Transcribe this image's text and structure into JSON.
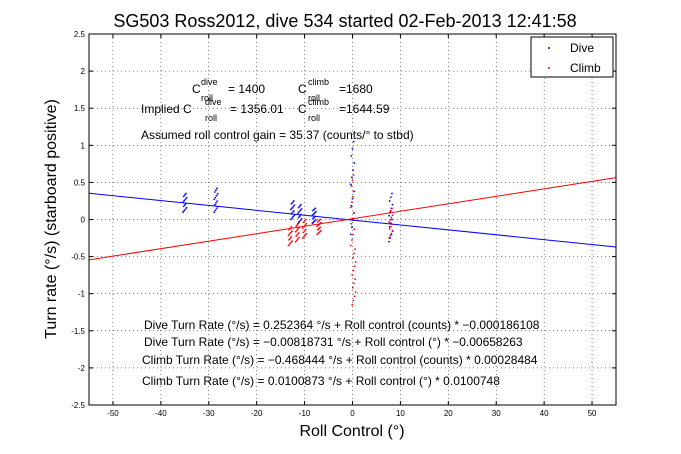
{
  "chart_data": {
    "type": "scatter",
    "title": "SG503 Ross2012, dive 534 started 02-Feb-2013 12:41:58",
    "xlabel": "Roll Control (°)",
    "ylabel": "Turn rate (°/s) (starboard positive)",
    "xlim": [
      -55,
      55
    ],
    "ylim": [
      -2.5,
      2.5
    ],
    "xticks": [
      -50,
      -40,
      -30,
      -20,
      -10,
      0,
      10,
      20,
      30,
      40,
      50
    ],
    "yticks": [
      -2.5,
      -2,
      -1.5,
      -1,
      -0.5,
      0,
      0.5,
      1,
      1.5,
      2,
      2.5
    ],
    "grid": true,
    "legend_position": "top-right",
    "series": [
      {
        "name": "Dive",
        "color": "#0000ff",
        "marker": "dot",
        "fit": {
          "intercept": -0.00818731,
          "slope": -0.00658263
        },
        "clusters": [
          {
            "x": -35,
            "y_min": 0.1,
            "y_max": 0.35
          },
          {
            "x": -28.5,
            "y_min": 0.1,
            "y_max": 0.42
          },
          {
            "x": -12.5,
            "y_min": 0.0,
            "y_max": 0.25
          },
          {
            "x": -11,
            "y_min": -0.05,
            "y_max": 0.2
          },
          {
            "x": -8,
            "y_min": -0.05,
            "y_max": 0.15
          },
          {
            "x": 0,
            "y_min": -0.2,
            "y_max": 1.05
          },
          {
            "x": 8,
            "y_min": -0.3,
            "y_max": 0.35
          }
        ]
      },
      {
        "name": "Climb",
        "color": "#ff0000",
        "marker": "dot",
        "fit": {
          "intercept": 0.0100873,
          "slope": 0.0100748
        },
        "clusters": [
          {
            "x": -13,
            "y_min": -0.35,
            "y_max": -0.1
          },
          {
            "x": -11.5,
            "y_min": -0.3,
            "y_max": -0.05
          },
          {
            "x": -10,
            "y_min": -0.25,
            "y_max": 0.0
          },
          {
            "x": -7,
            "y_min": -0.2,
            "y_max": 0.0
          },
          {
            "x": 0,
            "y_min": -0.35,
            "y_max": 0.6
          },
          {
            "x": 0.3,
            "y_min": -1.15,
            "y_max": -0.4
          },
          {
            "x": 8,
            "y_min": -0.25,
            "y_max": 0.15
          }
        ]
      }
    ],
    "annotations": {
      "c_dive_base": "C",
      "c_dive_sup": "dive",
      "c_dive_sub": "roll",
      "c_dive_value": "= 1400",
      "c_climb_base": "C",
      "c_climb_sup": "climb",
      "c_climb_sub": "roll",
      "c_climb_value": "=1680",
      "implied_label": "Implied C",
      "implied_dive_sup": "dive",
      "implied_dive_sub": "roll",
      "implied_dive_value": "= 1356.01",
      "implied_climb_base": "C",
      "implied_climb_sup": "climb",
      "implied_climb_sub": "roll",
      "implied_climb_value": "=1644.59",
      "gain_line": "Assumed roll control gain = 35.37 (counts/° to stbd)",
      "fit_lines": [
        "Dive Turn Rate (°/s) = 0.252364 °/s + Roll control (counts) * −0.000186108",
        "Dive Turn Rate (°/s) = −0.00818731 °/s + Roll control (°) * −0.00658263",
        "Climb Turn Rate (°/s) = −0.468444 °/s + Roll control (counts) * 0.00028484",
        "Climb Turn Rate (°/s) = 0.0100873 °/s + Roll control (°) * 0.0100748"
      ]
    }
  }
}
